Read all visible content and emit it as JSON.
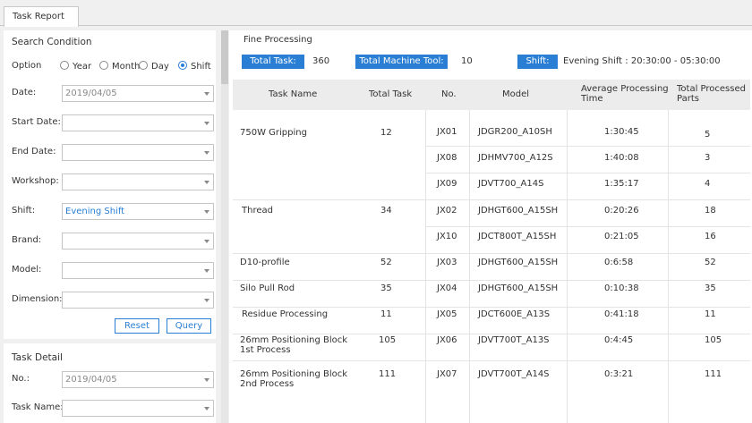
{
  "tab": {
    "label": "Task Report"
  },
  "search": {
    "title": "Search Condition",
    "option_label": "Option",
    "options": [
      {
        "label": "Year",
        "selected": false
      },
      {
        "label": "Month",
        "selected": false
      },
      {
        "label": "Day",
        "selected": false
      },
      {
        "label": "Shift",
        "selected": true
      }
    ],
    "date_label": "Date:",
    "date_value": "2019/04/05",
    "start_date_label": "Start Date:",
    "end_date_label": "End Date:",
    "workshop_label": "Workshop:",
    "shift_label": "Shift:",
    "shift_value": "Evening Shift",
    "brand_label": "Brand:",
    "model_label": "Model:",
    "dimension_label": "Dimension:",
    "reset_label": "Reset",
    "query_label": "Query"
  },
  "detail": {
    "title": "Task Detail",
    "no_label": "No.:",
    "no_value": "2019/04/05",
    "task_name_label": "Task Name:"
  },
  "main": {
    "section_title": "Fine Processing",
    "total_task_label": "Total Task:",
    "total_task_value": "360",
    "total_machine_label": "Total Machine Tool:",
    "total_machine_value": "10",
    "shift_label": "Shift:",
    "shift_value": "Evening Shift : 20:30:00 - 05:30:00"
  },
  "table": {
    "headers": {
      "task_name": "Task Name",
      "total_task": "Total Task",
      "no": "No.",
      "model": "Model",
      "avg_time_1": "Average Processing",
      "avg_time_2": "Time",
      "parts_1": "Total Processed",
      "parts_2": "Parts"
    },
    "groups": [
      {
        "name": "750W Gripping",
        "name2": "",
        "total": "12"
      },
      {
        "name": "Thread",
        "name2": "",
        "total": "34"
      },
      {
        "name": "D10-profile",
        "name2": "",
        "total": "52"
      },
      {
        "name": "Silo Pull Rod",
        "name2": "",
        "total": "35"
      },
      {
        "name": "Residue Processing",
        "name2": "",
        "total": "11"
      },
      {
        "name": "26mm Positioning Block",
        "name2": "1st Process",
        "total": "105"
      },
      {
        "name": "26mm Positioning Block",
        "name2": "2nd Process",
        "total": "111"
      }
    ],
    "rows": [
      {
        "no": "JX01",
        "model": "JDGR200_A10SH",
        "time": "1:30:45",
        "parts": "5"
      },
      {
        "no": "JX08",
        "model": "JDHMV700_A12S",
        "time": "1:40:08",
        "parts": "3"
      },
      {
        "no": "JX09",
        "model": "JDVT700_A14S",
        "time": "1:35:17",
        "parts": "4"
      },
      {
        "no": "JX02",
        "model": "JDHGT600_A15SH",
        "time": "0:20:26",
        "parts": "18"
      },
      {
        "no": "JX10",
        "model": "JDCT800T_A15SH",
        "time": "0:21:05",
        "parts": "16"
      },
      {
        "no": "JX03",
        "model": "JDHGT600_A15SH",
        "time": "0:6:58",
        "parts": "52"
      },
      {
        "no": "JX04",
        "model": "JDHGT600_A15SH",
        "time": "0:10:38",
        "parts": "35"
      },
      {
        "no": "JX05",
        "model": "JDCT600E_A13S",
        "time": "0:41:18",
        "parts": "11"
      },
      {
        "no": "JX06",
        "model": "JDVT700T_A13S",
        "time": "0:4:45",
        "parts": "105"
      },
      {
        "no": "JX07",
        "model": "JDVT700T_A14S",
        "time": "0:3:21",
        "parts": "111"
      }
    ]
  }
}
